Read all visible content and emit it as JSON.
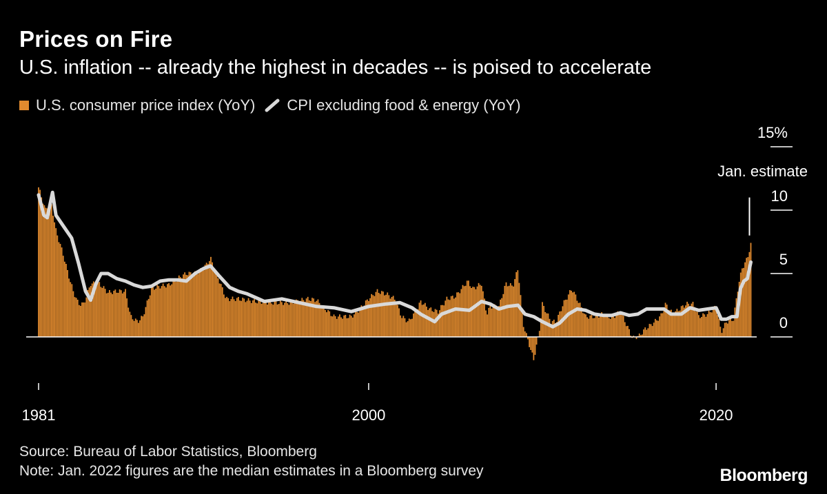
{
  "header": {
    "title": "Prices on Fire",
    "subtitle": "U.S. inflation -- already the highest in decades -- is poised to accelerate"
  },
  "footer": {
    "source": "Source: Bureau of Labor Statistics, Bloomberg",
    "note": "Note: Jan. 2022 figures are the median estimates in a Bloomberg survey",
    "brand": "Bloomberg"
  },
  "colors": {
    "background": "#000000",
    "cpi": "#e08a2e",
    "core": "#d9d9d9",
    "axis": "#ffffff"
  },
  "chart_data": {
    "type": "bar",
    "title": "Prices on Fire",
    "subtitle": "U.S. inflation -- already the highest in decades -- is poised to accelerate",
    "x_ticks": [
      "1981",
      "2000",
      "2020"
    ],
    "y_ticks": [
      "0",
      "5",
      "10",
      "15%"
    ],
    "ylim": [
      -2,
      15
    ],
    "xlim": [
      1981,
      2022.1
    ],
    "grid": false,
    "legend_position": "top-left",
    "annotation": {
      "label": "Jan. estimate",
      "x": 2022.0,
      "y": [
        8.0,
        11.0
      ]
    },
    "series": [
      {
        "name": "U.S. consumer price index (YoY)",
        "type": "bar",
        "points": [
          [
            1981.0,
            11.8
          ],
          [
            1981.4,
            10.0
          ],
          [
            1981.7,
            10.8
          ],
          [
            1982.0,
            8.4
          ],
          [
            1982.4,
            6.6
          ],
          [
            1982.7,
            5.0
          ],
          [
            1983.0,
            3.6
          ],
          [
            1983.3,
            2.6
          ],
          [
            1983.6,
            2.6
          ],
          [
            1984.0,
            4.2
          ],
          [
            1984.5,
            4.2
          ],
          [
            1985.0,
            3.5
          ],
          [
            1985.5,
            3.6
          ],
          [
            1986.0,
            3.6
          ],
          [
            1986.3,
            1.6
          ],
          [
            1986.7,
            1.2
          ],
          [
            1987.0,
            1.6
          ],
          [
            1987.5,
            3.8
          ],
          [
            1988.0,
            4.0
          ],
          [
            1988.5,
            4.1
          ],
          [
            1989.0,
            4.6
          ],
          [
            1989.5,
            5.0
          ],
          [
            1990.0,
            5.0
          ],
          [
            1990.5,
            5.4
          ],
          [
            1990.9,
            6.2
          ],
          [
            1991.3,
            4.8
          ],
          [
            1991.8,
            3.0
          ],
          [
            1992.5,
            3.0
          ],
          [
            1993.5,
            2.8
          ],
          [
            1994.5,
            2.7
          ],
          [
            1995.5,
            2.7
          ],
          [
            1996.5,
            3.0
          ],
          [
            1997.0,
            2.9
          ],
          [
            1997.5,
            2.2
          ],
          [
            1998.0,
            1.6
          ],
          [
            1998.5,
            1.6
          ],
          [
            1999.0,
            1.6
          ],
          [
            1999.5,
            2.2
          ],
          [
            2000.0,
            3.0
          ],
          [
            2000.5,
            3.6
          ],
          [
            2001.0,
            3.4
          ],
          [
            2001.5,
            3.0
          ],
          [
            2001.9,
            1.6
          ],
          [
            2002.3,
            1.2
          ],
          [
            2002.8,
            2.2
          ],
          [
            2003.0,
            2.8
          ],
          [
            2003.5,
            2.2
          ],
          [
            2004.0,
            2.0
          ],
          [
            2004.5,
            3.0
          ],
          [
            2005.0,
            3.2
          ],
          [
            2005.7,
            4.4
          ],
          [
            2006.0,
            3.8
          ],
          [
            2006.5,
            4.2
          ],
          [
            2006.8,
            1.8
          ],
          [
            2007.0,
            2.4
          ],
          [
            2007.5,
            2.4
          ],
          [
            2007.9,
            4.2
          ],
          [
            2008.3,
            4.0
          ],
          [
            2008.6,
            5.4
          ],
          [
            2008.9,
            1.0
          ],
          [
            2009.2,
            -0.4
          ],
          [
            2009.5,
            -1.8
          ],
          [
            2009.8,
            0.2
          ],
          [
            2010.0,
            2.6
          ],
          [
            2010.5,
            1.2
          ],
          [
            2010.8,
            1.2
          ],
          [
            2011.2,
            2.6
          ],
          [
            2011.7,
            3.8
          ],
          [
            2012.0,
            3.0
          ],
          [
            2012.5,
            1.6
          ],
          [
            2013.0,
            1.6
          ],
          [
            2013.5,
            1.8
          ],
          [
            2014.0,
            1.5
          ],
          [
            2014.5,
            2.0
          ],
          [
            2014.9,
            0.8
          ],
          [
            2015.2,
            -0.1
          ],
          [
            2015.6,
            0.1
          ],
          [
            2015.9,
            0.6
          ],
          [
            2016.3,
            1.0
          ],
          [
            2016.8,
            1.6
          ],
          [
            2017.1,
            2.6
          ],
          [
            2017.5,
            1.8
          ],
          [
            2017.9,
            2.2
          ],
          [
            2018.3,
            2.6
          ],
          [
            2018.7,
            2.6
          ],
          [
            2019.0,
            1.6
          ],
          [
            2019.5,
            1.8
          ],
          [
            2020.0,
            2.4
          ],
          [
            2020.3,
            0.4
          ],
          [
            2020.6,
            1.2
          ],
          [
            2021.0,
            1.4
          ],
          [
            2021.3,
            4.2
          ],
          [
            2021.5,
            5.4
          ],
          [
            2021.8,
            6.2
          ],
          [
            2022.0,
            7.3
          ]
        ]
      },
      {
        "name": "CPI excluding food & energy (YoY)",
        "type": "line",
        "points": [
          [
            1981.0,
            11.2
          ],
          [
            1981.3,
            9.6
          ],
          [
            1981.5,
            9.4
          ],
          [
            1981.8,
            11.4
          ],
          [
            1982.0,
            9.6
          ],
          [
            1982.5,
            8.6
          ],
          [
            1982.9,
            7.8
          ],
          [
            1983.3,
            5.8
          ],
          [
            1983.7,
            3.6
          ],
          [
            1984.0,
            2.9
          ],
          [
            1984.3,
            4.2
          ],
          [
            1984.6,
            5.0
          ],
          [
            1985.0,
            5.0
          ],
          [
            1985.5,
            4.6
          ],
          [
            1986.0,
            4.4
          ],
          [
            1986.5,
            4.1
          ],
          [
            1987.0,
            3.9
          ],
          [
            1987.5,
            4.0
          ],
          [
            1988.0,
            4.4
          ],
          [
            1988.5,
            4.5
          ],
          [
            1989.0,
            4.5
          ],
          [
            1989.5,
            4.4
          ],
          [
            1990.0,
            5.0
          ],
          [
            1990.5,
            5.4
          ],
          [
            1990.9,
            5.6
          ],
          [
            1991.4,
            4.8
          ],
          [
            1992.0,
            3.9
          ],
          [
            1992.5,
            3.6
          ],
          [
            1993.0,
            3.4
          ],
          [
            1994.0,
            2.8
          ],
          [
            1995.0,
            3.0
          ],
          [
            1996.0,
            2.7
          ],
          [
            1997.0,
            2.4
          ],
          [
            1998.0,
            2.3
          ],
          [
            1999.0,
            2.0
          ],
          [
            2000.0,
            2.4
          ],
          [
            2001.0,
            2.6
          ],
          [
            2001.8,
            2.7
          ],
          [
            2002.5,
            2.3
          ],
          [
            2003.0,
            1.8
          ],
          [
            2003.8,
            1.2
          ],
          [
            2004.2,
            1.8
          ],
          [
            2005.0,
            2.2
          ],
          [
            2005.8,
            2.1
          ],
          [
            2006.5,
            2.8
          ],
          [
            2007.0,
            2.6
          ],
          [
            2007.5,
            2.2
          ],
          [
            2008.0,
            2.4
          ],
          [
            2008.6,
            2.5
          ],
          [
            2009.0,
            1.8
          ],
          [
            2009.5,
            1.6
          ],
          [
            2010.0,
            1.2
          ],
          [
            2010.6,
            0.8
          ],
          [
            2011.0,
            1.1
          ],
          [
            2011.5,
            1.8
          ],
          [
            2012.0,
            2.2
          ],
          [
            2012.5,
            2.1
          ],
          [
            2013.0,
            1.8
          ],
          [
            2013.5,
            1.7
          ],
          [
            2014.0,
            1.7
          ],
          [
            2014.5,
            1.9
          ],
          [
            2015.0,
            1.7
          ],
          [
            2015.5,
            1.8
          ],
          [
            2016.0,
            2.2
          ],
          [
            2016.5,
            2.2
          ],
          [
            2017.0,
            2.2
          ],
          [
            2017.4,
            1.8
          ],
          [
            2018.0,
            1.8
          ],
          [
            2018.5,
            2.3
          ],
          [
            2019.0,
            2.1
          ],
          [
            2019.5,
            2.2
          ],
          [
            2020.0,
            2.3
          ],
          [
            2020.3,
            1.4
          ],
          [
            2020.6,
            1.4
          ],
          [
            2020.9,
            1.6
          ],
          [
            2021.2,
            1.6
          ],
          [
            2021.4,
            3.8
          ],
          [
            2021.6,
            4.4
          ],
          [
            2021.8,
            4.6
          ],
          [
            2022.0,
            5.9
          ]
        ]
      }
    ]
  }
}
